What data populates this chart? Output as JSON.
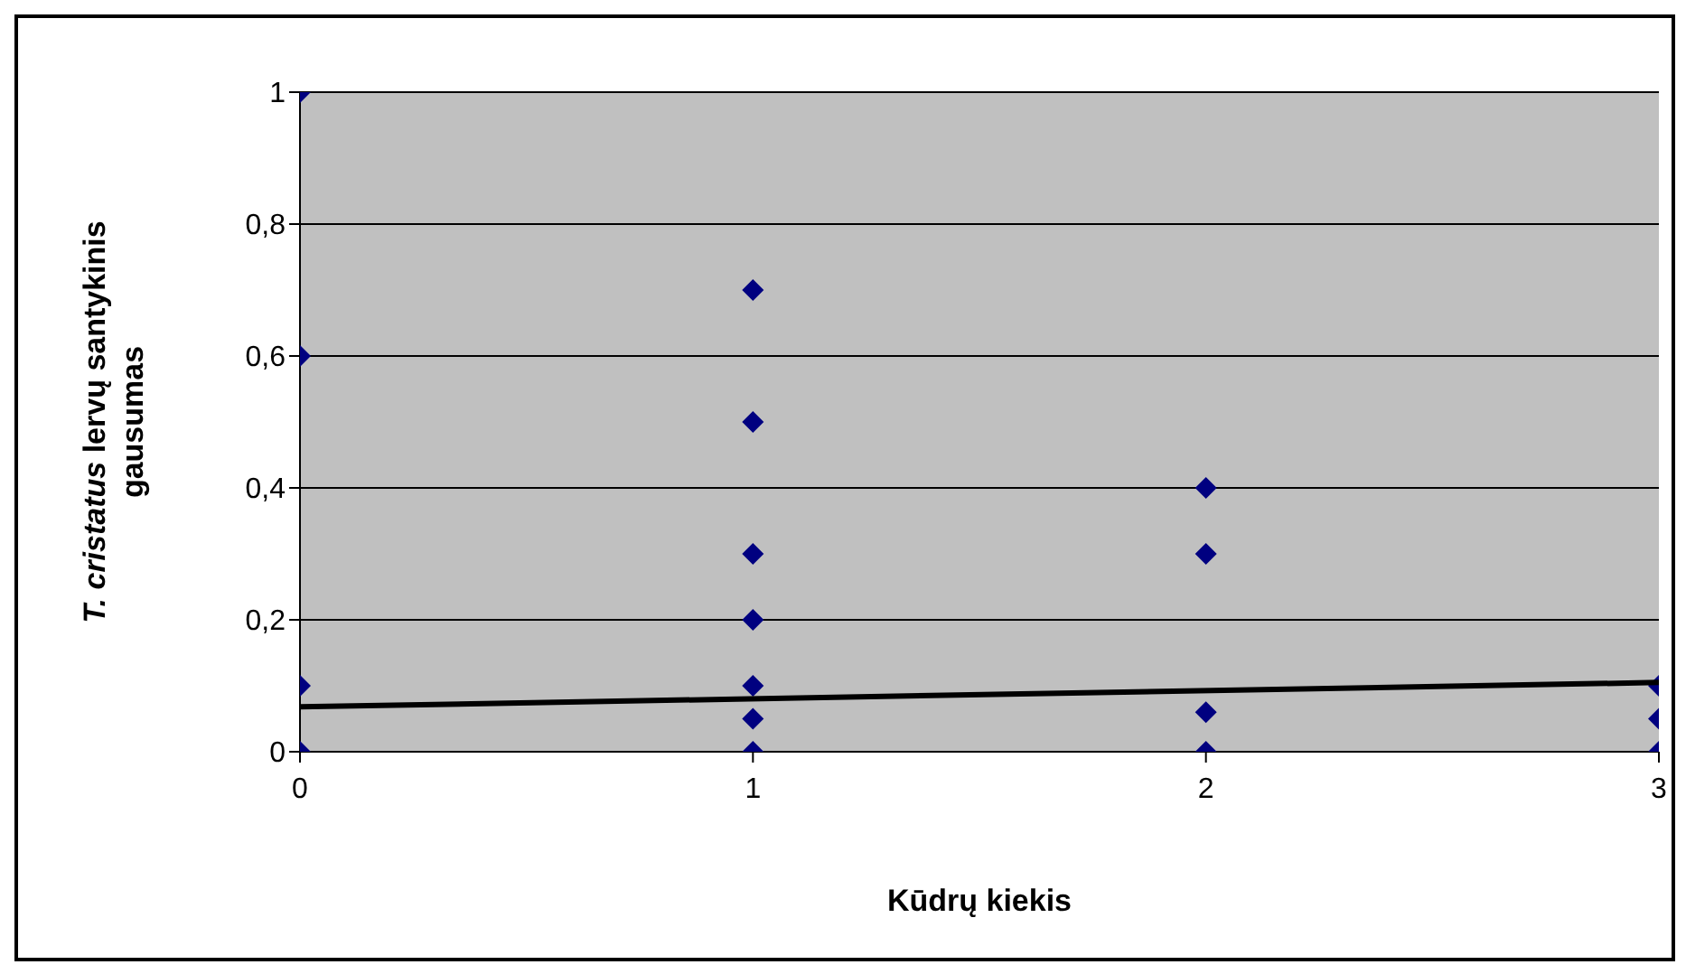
{
  "chart_data": {
    "type": "scatter",
    "xlabel": "Kūdrų kiekis",
    "ylabel": "T. cristatus lervų santykinis gausumas",
    "xlim": [
      0,
      3
    ],
    "xticks": [
      0,
      1,
      2,
      3
    ],
    "ylim": [
      0,
      1
    ],
    "yticks": [
      0,
      {
        "value": 0.2,
        "label": "0,2"
      },
      {
        "value": 0.4,
        "label": "0,4"
      },
      {
        "value": 0.6,
        "label": "0,6"
      },
      {
        "value": 0.8,
        "label": "0,8"
      },
      1
    ],
    "grid": "y",
    "legend": false,
    "series": [
      {
        "marker": "diamond",
        "color": "#000080",
        "x": [
          0,
          0,
          0,
          0,
          1,
          1,
          1,
          1,
          1,
          1,
          1,
          2,
          2,
          2,
          2,
          3,
          3,
          3
        ],
        "values": [
          1,
          0.6,
          0.1,
          0,
          0.7,
          0.5,
          0.3,
          0.2,
          0.1,
          0.05,
          0,
          0.4,
          0.3,
          0.06,
          0,
          0.1,
          0.05,
          0
        ]
      },
      {
        "type": "line",
        "marker": "none",
        "color": "#000000",
        "x": [
          0,
          3
        ],
        "values": [
          0.068,
          0.105
        ]
      }
    ]
  }
}
